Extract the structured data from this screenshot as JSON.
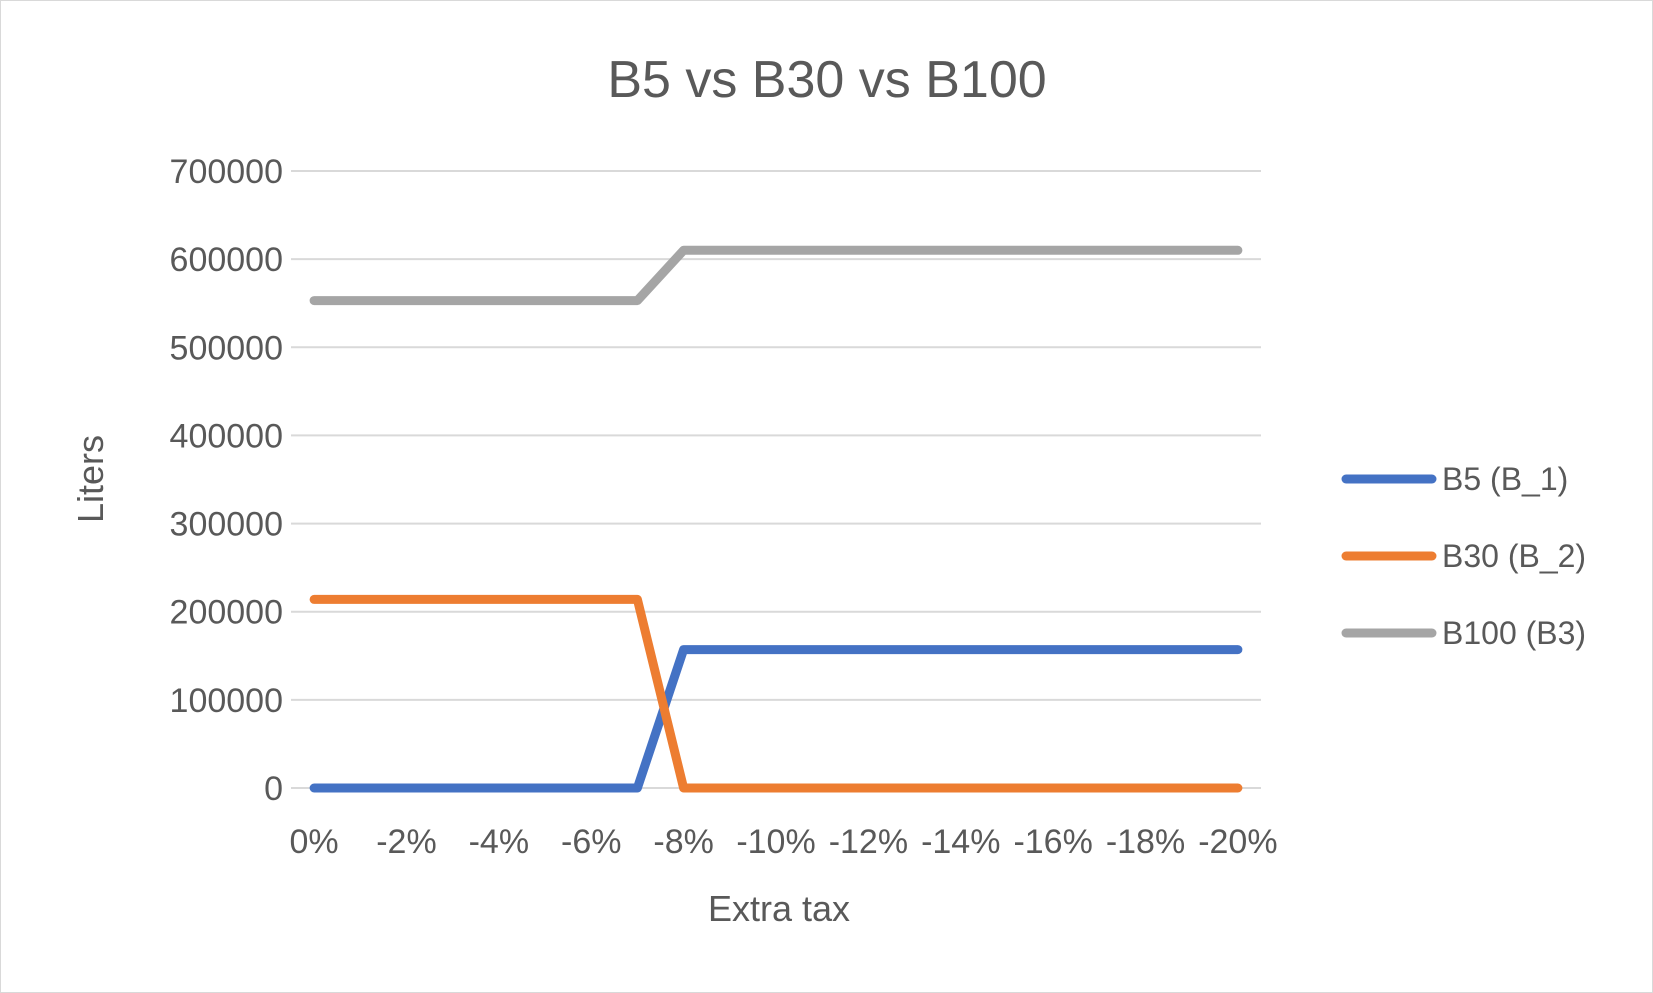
{
  "chart_data": {
    "type": "line",
    "title": "B5 vs B30 vs B100",
    "xlabel": "Extra tax",
    "ylabel": "Liters",
    "categories": [
      "0%",
      "-1%",
      "-2%",
      "-3%",
      "-4%",
      "-5%",
      "-6%",
      "-7%",
      "-8%",
      "-9%",
      "-10%",
      "-11%",
      "-12%",
      "-13%",
      "-14%",
      "-15%",
      "-16%",
      "-17%",
      "-18%",
      "-19%",
      "-20%"
    ],
    "x_tick_labels": [
      "0%",
      "-2%",
      "-4%",
      "-6%",
      "-8%",
      "-10%",
      "-12%",
      "-14%",
      "-16%",
      "-18%",
      "-20%"
    ],
    "y_tick_labels": [
      "0",
      "100000",
      "200000",
      "300000",
      "400000",
      "500000",
      "600000",
      "700000"
    ],
    "ylim": [
      0,
      700000
    ],
    "grid": true,
    "legend_position": "right",
    "series": [
      {
        "name": "B5 (B_1)",
        "color": "#4472c4",
        "values": [
          0,
          0,
          0,
          0,
          0,
          0,
          0,
          0,
          157000,
          157000,
          157000,
          157000,
          157000,
          157000,
          157000,
          157000,
          157000,
          157000,
          157000,
          157000,
          157000
        ]
      },
      {
        "name": "B30 (B_2)",
        "color": "#ed7d31",
        "values": [
          214000,
          214000,
          214000,
          214000,
          214000,
          214000,
          214000,
          214000,
          0,
          0,
          0,
          0,
          0,
          0,
          0,
          0,
          0,
          0,
          0,
          0,
          0
        ]
      },
      {
        "name": "B100 (B3)",
        "color": "#a5a5a5",
        "values": [
          553000,
          553000,
          553000,
          553000,
          553000,
          553000,
          553000,
          553000,
          610000,
          610000,
          610000,
          610000,
          610000,
          610000,
          610000,
          610000,
          610000,
          610000,
          610000,
          610000,
          610000
        ]
      }
    ]
  }
}
